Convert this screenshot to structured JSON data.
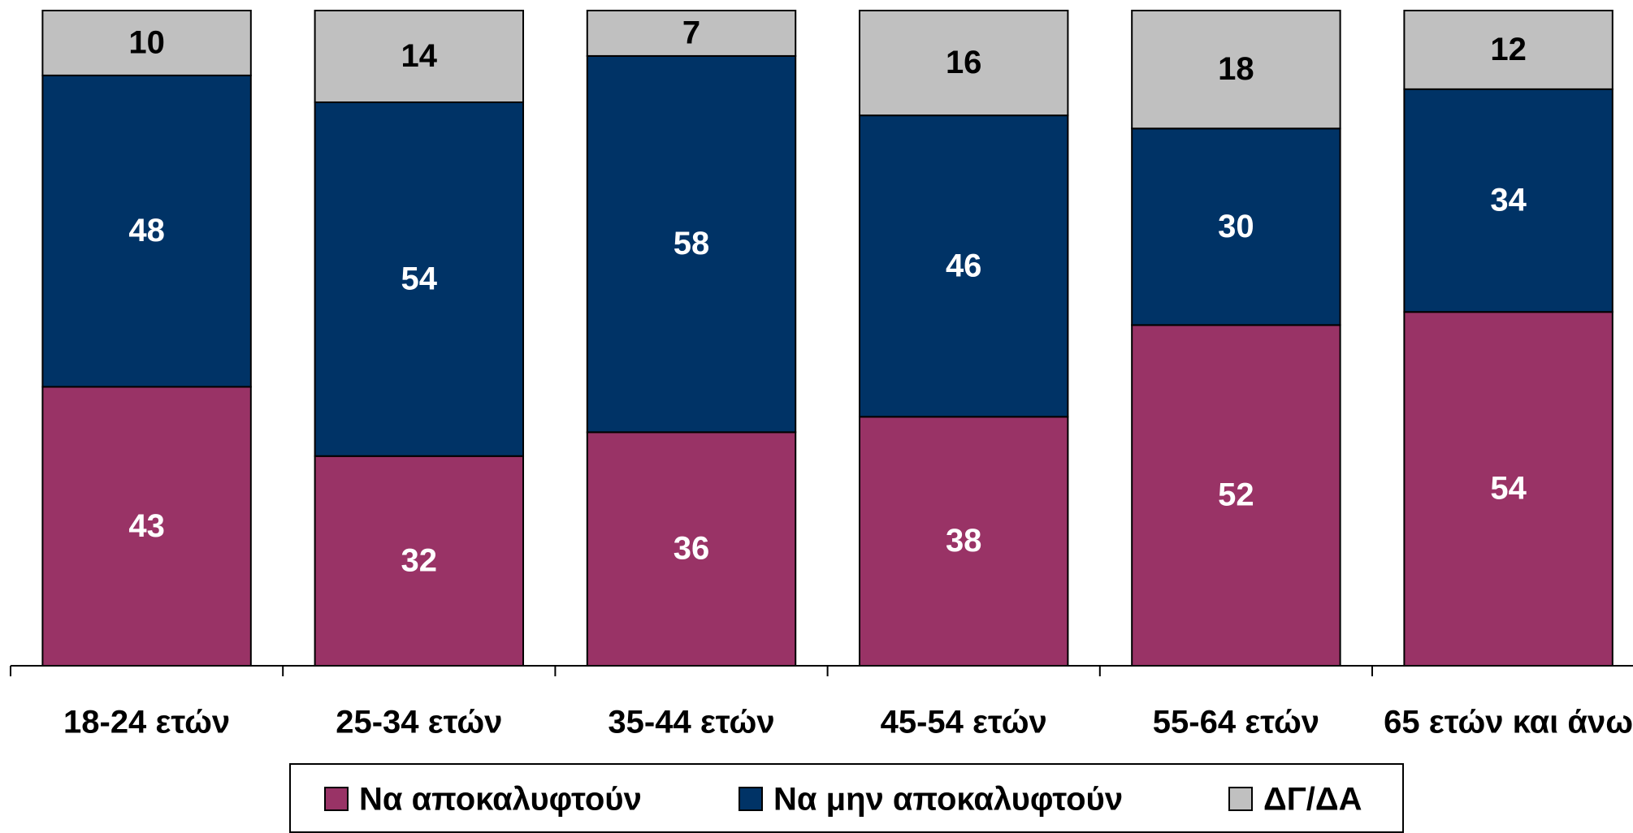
{
  "chart_data": {
    "type": "stacked_bar_percent",
    "categories": [
      "18-24 ετών",
      "25-34 ετών",
      "35-44 ετών",
      "45-54 ετών",
      "55-64 ετών",
      "65 ετών και άνω"
    ],
    "series": [
      {
        "name": "Να αποκαλυφτούν",
        "color": "#993366",
        "values": [
          43,
          32,
          36,
          38,
          52,
          54
        ]
      },
      {
        "name": "Να μην αποκαλυφτούν",
        "color": "#003366",
        "values": [
          48,
          54,
          58,
          46,
          30,
          34
        ]
      },
      {
        "name": "ΔΓ/ΔΑ",
        "color": "#c0c0c0",
        "values": [
          10,
          14,
          7,
          16,
          18,
          12
        ]
      }
    ],
    "legend": "bottom"
  }
}
